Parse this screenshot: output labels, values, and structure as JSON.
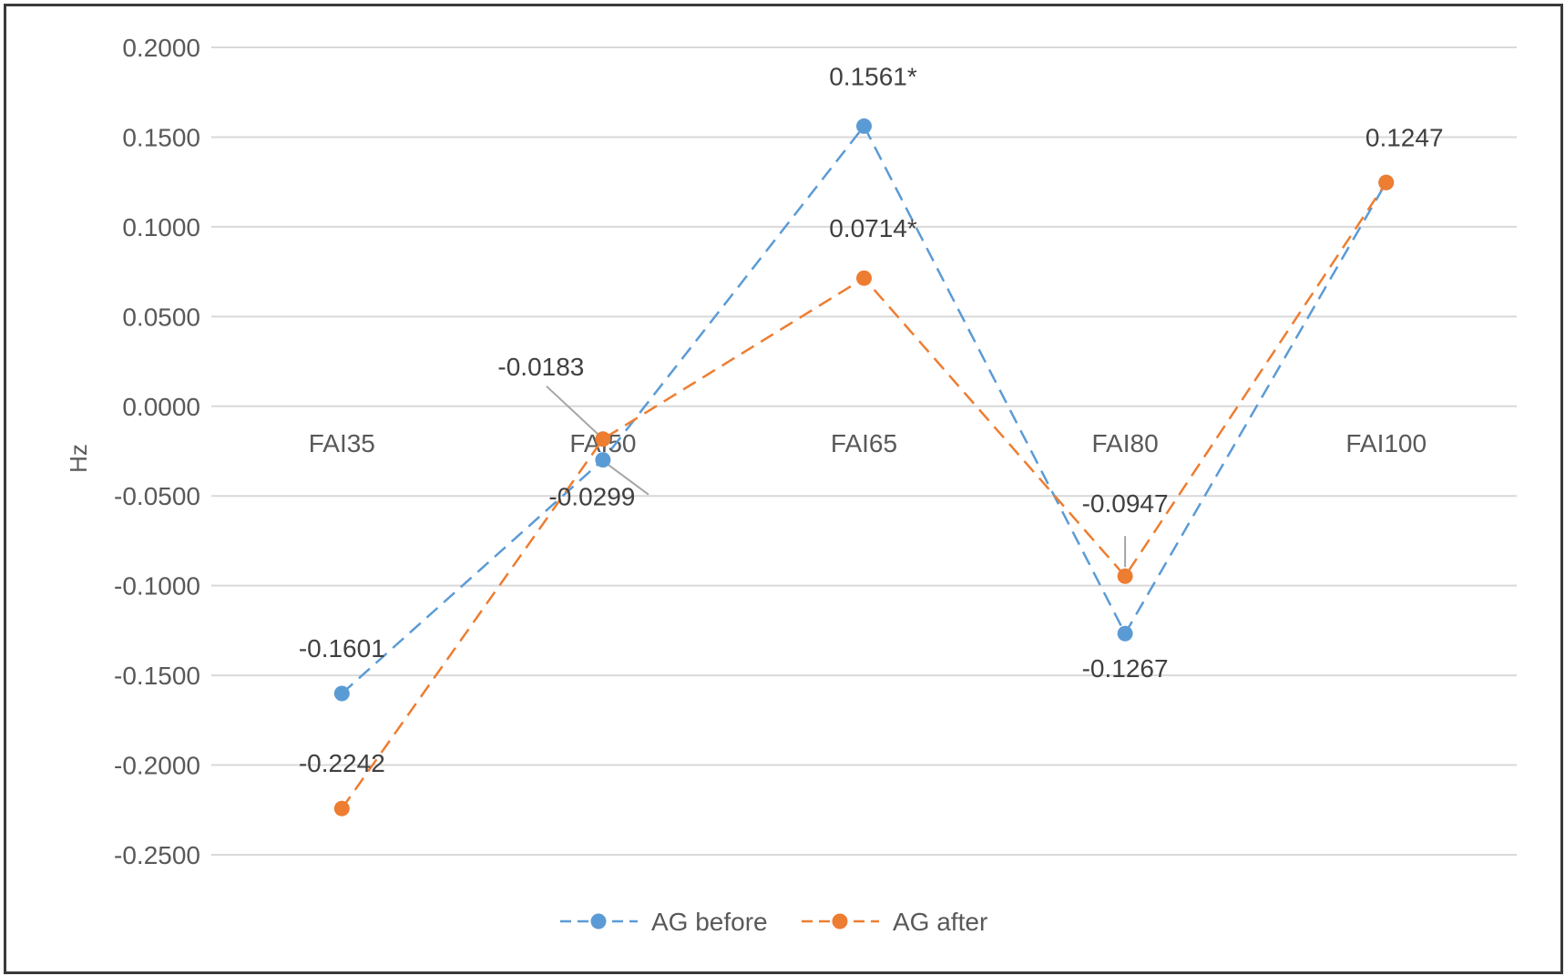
{
  "chart_data": {
    "type": "line",
    "title": "",
    "xlabel": "",
    "ylabel": "Hz",
    "categories": [
      "FAI35",
      "FAI50",
      "FAI65",
      "FAI80",
      "FAI100"
    ],
    "ylim": [
      -0.25,
      0.2
    ],
    "yticks": [
      "0.2000",
      "0.1500",
      "0.1000",
      "0.0500",
      "0.0000",
      "-0.0500",
      "-0.1000",
      "-0.1500",
      "-0.2000",
      "-0.2500"
    ],
    "grid": true,
    "legend_position": "bottom",
    "series": [
      {
        "name": "AG before",
        "color": "#5B9BD5",
        "values": [
          -0.1601,
          -0.0299,
          0.1561,
          -0.1267,
          0.1247
        ],
        "labels": [
          "-0.1601",
          "-0.0299",
          "0.1561*",
          "-0.1267",
          ""
        ]
      },
      {
        "name": "AG after",
        "color": "#ED7D31",
        "values": [
          -0.2242,
          -0.0183,
          0.0714,
          -0.0947,
          0.1247
        ],
        "labels": [
          "-0.2242",
          "-0.0183",
          "0.0714*",
          "-0.0947",
          "0.1247"
        ]
      }
    ]
  }
}
